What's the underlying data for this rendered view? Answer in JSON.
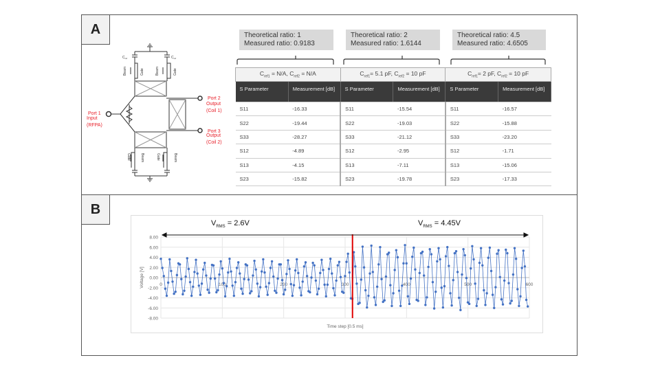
{
  "panel_a": {
    "label": "A",
    "ratios": [
      {
        "theoretical": "Theoretical ratio: 1",
        "measured": "Measured ratio: 0.9183"
      },
      {
        "theoretical": "Theoretical ratio: 2",
        "measured": "Measured ratio: 1.6144"
      },
      {
        "theoretical": "Theoretical ratio: 4.5",
        "measured": "Measured ratio: 4.6505"
      }
    ],
    "table": {
      "groups": [
        {
          "c1_label": "C",
          "c1_sub": "ref1",
          "c1_val": " = N/A, ",
          "c2_label": "C",
          "c2_sub": "ref2",
          "c2_val": " = N/A"
        },
        {
          "c1_label": "C",
          "c1_sub": "ref1",
          "c1_val": "= 5.1 pF, ",
          "c2_label": "C",
          "c2_sub": "ref2",
          "c2_val": " = 10 pF"
        },
        {
          "c1_label": "C",
          "c1_sub": "ref1",
          "c1_val": "= 2 pF, ",
          "c2_label": "C",
          "c2_sub": "ref2",
          "c2_val": " = 10 pF"
        }
      ],
      "headers": [
        "S Parameter",
        "Measurement [dB]"
      ],
      "rows": [
        [
          "S11",
          "-16.33",
          "S11",
          "-15.54",
          "S11",
          "-16.57"
        ],
        [
          "S22",
          "-19.44",
          "S22",
          "-19.03",
          "S22",
          "-15.88"
        ],
        [
          "S33",
          "-28.27",
          "S33",
          "-21.12",
          "S33",
          "-23.20"
        ],
        [
          "S12",
          "-4.89",
          "S12",
          "-2.95",
          "S12",
          "-1.71"
        ],
        [
          "S13",
          "-4.15",
          "S13",
          "-7.11",
          "S13",
          "-15.06"
        ],
        [
          "S23",
          "-15.82",
          "S23",
          "-19.78",
          "S23",
          "-17.33"
        ]
      ]
    },
    "circuit": {
      "cref": "C",
      "cref_sub": "ref",
      "beam": "Beam",
      "gate": "Gate",
      "port1": [
        "Port 1",
        "Input",
        "(RFPA)"
      ],
      "port2": [
        "Port 2",
        "Output",
        "(Coil 1)"
      ],
      "port3": [
        "Port 3",
        "Output",
        "(Coil 2)"
      ],
      "port_color": "#e8202a"
    }
  },
  "panel_b": {
    "label": "B",
    "vrms_left": {
      "v": "V",
      "sub": "RMS",
      "val": " = 2.6V"
    },
    "vrms_right": {
      "v": "V",
      "sub": "RMS",
      "val": " = 4.45V"
    }
  },
  "chart_data": {
    "type": "line",
    "xlabel": "Time step [0.5 ms]",
    "ylabel": "Voltage [V]",
    "xlim": [
      0,
      600
    ],
    "ylim": [
      -8,
      8
    ],
    "x_ticks": [
      "0",
      "100",
      "200",
      "300",
      "400",
      "500",
      "600"
    ],
    "y_ticks": [
      "8.00",
      "6.00",
      "4.00",
      "2.00",
      "0.00",
      "-2.00",
      "-4.00",
      "-6.00",
      "-8.00"
    ],
    "grid": true,
    "series_color": "#4472c4",
    "marker_line_color": "#e00000",
    "marker_line_x": 312,
    "x_step": 2.38,
    "values": [
      3.7,
      1.9,
      0.3,
      -2.2,
      -3.6,
      -1.0,
      3.6,
      1.3,
      -0.8,
      -3.2,
      -2.8,
      0.5,
      2.8,
      2.6,
      -0.3,
      -3.3,
      -2.6,
      0.2,
      3.8,
      1.7,
      -0.9,
      -3.6,
      -1.8,
      1.1,
      3.5,
      0.8,
      -1.6,
      -3.4,
      -1.2,
      1.6,
      2.9,
      0.4,
      -2.4,
      -3.0,
      -0.2,
      2.5,
      2.4,
      -0.2,
      -2.9,
      -2.5,
      0.6,
      3.2,
      1.8,
      -1.1,
      -3.7,
      -1.7,
      1.0,
      3.7,
      1.2,
      -1.6,
      -3.6,
      -0.9,
      1.9,
      3.0,
      0.8,
      -2.2,
      -3.2,
      -0.3,
      2.6,
      2.4,
      -0.4,
      -3.1,
      -2.7,
      0.4,
      3.3,
      1.6,
      -1.2,
      -3.7,
      -1.9,
      1.2,
      3.6,
      1.0,
      -1.8,
      -3.4,
      -1.1,
      1.9,
      3.2,
      0.2,
      -2.6,
      -3.0,
      -0.2,
      2.6,
      2.6,
      -0.5,
      -3.3,
      -2.4,
      0.7,
      3.4,
      1.7,
      -1.3,
      -3.6,
      -1.5,
      1.4,
      3.6,
      0.9,
      -2.0,
      -3.5,
      -0.8,
      2.2,
      3.0,
      0.3,
      -2.7,
      -2.9,
      0.0,
      2.9,
      2.4,
      -0.6,
      -3.3,
      -2.2,
      0.9,
      3.5,
      1.5,
      -1.4,
      -3.7,
      -1.4,
      1.7,
      3.7,
      0.8,
      -2.1,
      -3.5,
      -0.6,
      2.4,
      3.1,
      0.1,
      -2.8,
      -3.0,
      0.3,
      3.1,
      4.7,
      1.0,
      -4.1,
      -4.2,
      5.0,
      2.2,
      -1.2,
      -5.2,
      -5.0,
      -0.4,
      6.1,
      2.0,
      -2.5,
      -5.9,
      -3.6,
      0.8,
      6.3,
      1.1,
      -3.9,
      -5.4,
      -1.8,
      2.6,
      6.0,
      -0.3,
      -4.8,
      -4.5,
      0.2,
      4.6,
      4.9,
      -1.5,
      -5.6,
      -3.1,
      1.5,
      5.4,
      4.0,
      -2.6,
      -5.6,
      -1.6,
      2.8,
      6.4,
      2.8,
      -3.7,
      -5.2,
      -0.2,
      4.1,
      5.9,
      1.6,
      -4.4,
      -4.6,
      0.9,
      4.8,
      5.1,
      0.4,
      -5.4,
      -3.9,
      2.1,
      5.6,
      4.6,
      -0.9,
      -6.1,
      -2.8,
      3.2,
      5.8,
      3.6,
      -2.0,
      -5.9,
      -1.7,
      4.2,
      6.0,
      2.3,
      -3.1,
      -5.5,
      -0.5,
      4.8,
      5.2,
      1.1,
      -4.0,
      -6.4,
      0.6,
      5.6,
      4.4,
      -0.1,
      -4.9,
      -5.2,
      1.8,
      6.2,
      3.6,
      -1.2,
      -5.6,
      -4.2,
      2.9,
      5.8,
      2.4,
      -2.5,
      -5.4,
      -3.1,
      3.9,
      5.9,
      1.3,
      -3.4,
      -6.0,
      -1.9,
      4.7,
      5.4,
      0.1,
      -4.3,
      -5.3,
      -0.6,
      5.5,
      4.8,
      -1.1,
      -5.1,
      -4.6,
      0.6,
      5.8,
      3.7,
      -2.3,
      -5.6,
      -3.7,
      1.9,
      5.3,
      2.2,
      -4.4,
      -5.7
    ]
  }
}
